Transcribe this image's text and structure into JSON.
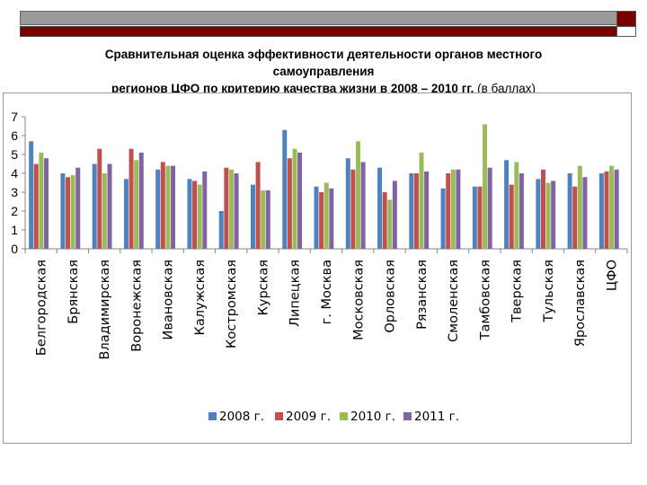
{
  "slide": {
    "title_line1": "Сравнительная оценка эффективности деятельности органов местного",
    "title_line2": "самоуправления",
    "title_line3": "регионов ЦФО по критерию качества жизни  в 2008 – 2010 гг.",
    "title_unit": "(в баллах)"
  },
  "chart_data": {
    "type": "bar",
    "ylim": [
      0,
      7
    ],
    "yticks": [
      "0",
      "1",
      "2",
      "3",
      "4",
      "5",
      "6",
      "7"
    ],
    "categories": [
      "Белгородская",
      "Брянская",
      "Владимирская",
      "Воронежская",
      "Ивановская",
      "Калужская",
      "Костромская",
      "Курская",
      "Липецкая",
      "г. Москва",
      "Московская",
      "Орловская",
      "Рязанская",
      "Смоленская",
      "Тамбовская",
      "Тверская",
      "Тульская",
      "Ярославская",
      "ЦФО"
    ],
    "series": [
      {
        "name": "2008 г.",
        "color": "#4f81bd",
        "values": [
          5.7,
          4.0,
          4.5,
          3.7,
          4.2,
          3.7,
          2.0,
          3.4,
          6.3,
          3.3,
          4.8,
          4.3,
          4.0,
          3.2,
          3.3,
          4.7,
          3.7,
          4.0,
          4.0
        ]
      },
      {
        "name": "2009 г.",
        "color": "#c0504d",
        "values": [
          4.5,
          3.8,
          5.3,
          5.3,
          4.6,
          3.6,
          4.3,
          4.6,
          4.8,
          3.0,
          4.2,
          3.0,
          4.0,
          4.0,
          3.3,
          3.4,
          4.2,
          3.3,
          4.1
        ]
      },
      {
        "name": "2010 г.",
        "color": "#9bbb59",
        "values": [
          5.1,
          3.9,
          4.0,
          4.7,
          4.4,
          3.4,
          4.2,
          3.1,
          5.3,
          3.5,
          5.7,
          2.6,
          5.1,
          4.2,
          6.6,
          4.6,
          3.5,
          4.4,
          4.4
        ]
      },
      {
        "name": "2011 г.",
        "color": "#8064a2",
        "values": [
          4.8,
          4.3,
          4.5,
          5.1,
          4.4,
          4.1,
          4.0,
          3.1,
          5.1,
          3.2,
          4.6,
          3.6,
          4.1,
          4.2,
          4.3,
          4.0,
          3.6,
          3.8,
          4.2
        ]
      }
    ],
    "legend_position": "bottom",
    "grid": false
  }
}
